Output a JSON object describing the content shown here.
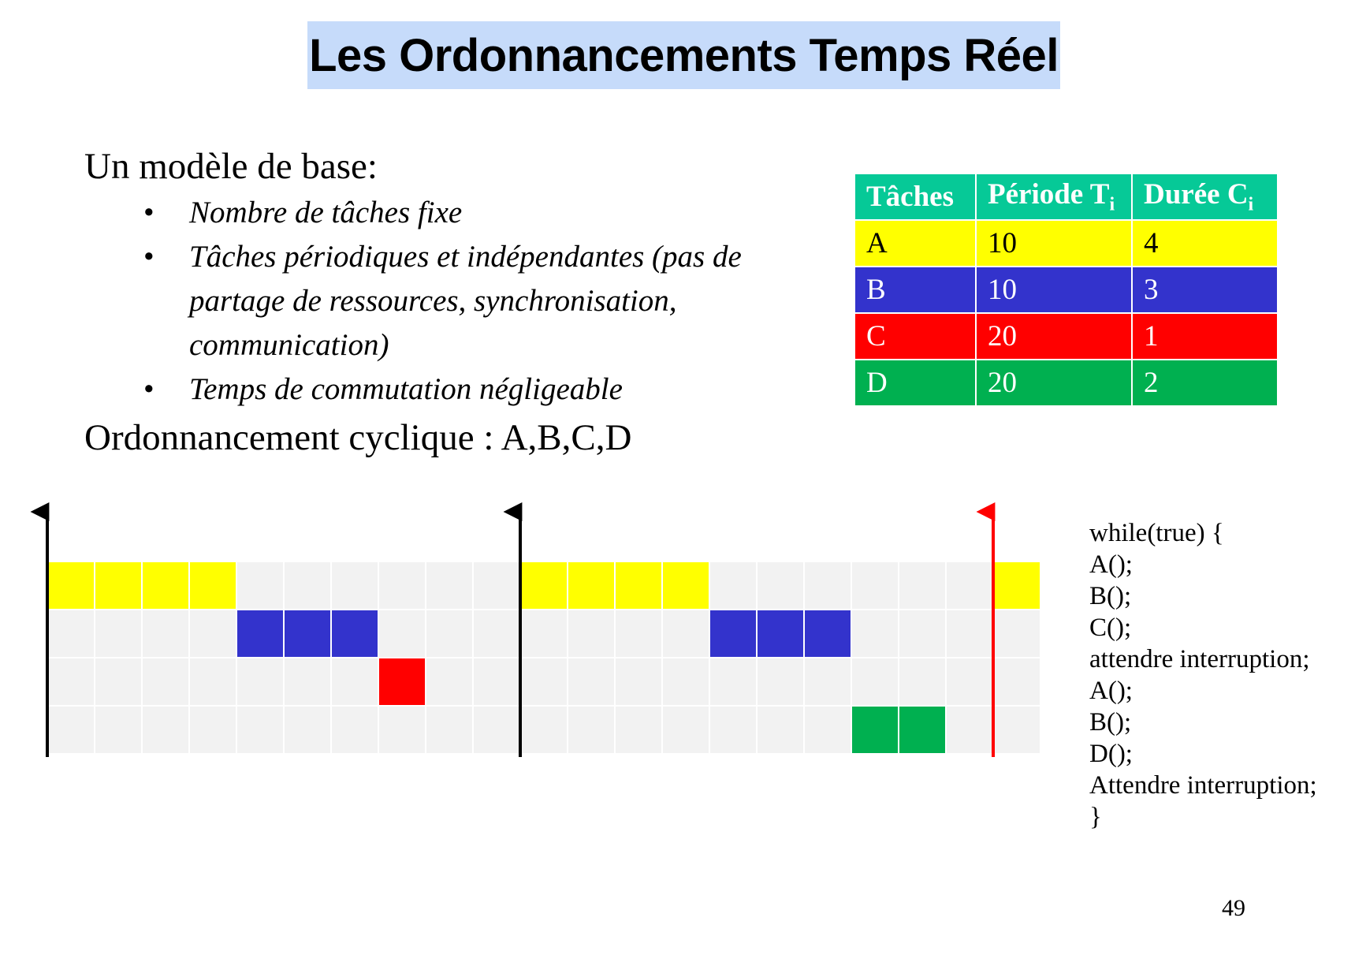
{
  "title": "Les Ordonnancements Temps Réel",
  "model_heading": "Un modèle de base:",
  "bullets": [
    "Nombre de tâches fixe",
    "Tâches périodiques et indépendantes (pas de partage de ressources, synchronisation, communication)",
    "Temps de commutation négligeable"
  ],
  "bullet_glyph": "•",
  "cyclic_heading": "Ordonnancement cyclique : A,B,C,D",
  "table": {
    "headers": {
      "task": "Tâches",
      "period": "Période T",
      "period_sub": "i",
      "duration": "Durée C",
      "duration_sub": "i"
    },
    "rows": [
      {
        "task": "A",
        "period": "10",
        "duration": "4"
      },
      {
        "task": "B",
        "period": "10",
        "duration": "3"
      },
      {
        "task": "C",
        "period": "20",
        "duration": "1"
      },
      {
        "task": "D",
        "period": "20",
        "duration": "2"
      }
    ]
  },
  "chart_data": {
    "type": "gantt",
    "time_range": [
      0,
      21
    ],
    "rows": [
      "A",
      "B",
      "C",
      "D"
    ],
    "row_colors": {
      "A": "#ffff00",
      "B": "#3333cc",
      "C": "#ff0000",
      "D": "#00b050"
    },
    "empty_color": "#f2f2f2",
    "blocks": [
      {
        "task": "A",
        "start": 0,
        "end": 4
      },
      {
        "task": "B",
        "start": 4,
        "end": 7
      },
      {
        "task": "C",
        "start": 7,
        "end": 8
      },
      {
        "task": "A",
        "start": 10,
        "end": 14
      },
      {
        "task": "B",
        "start": 14,
        "end": 17
      },
      {
        "task": "D",
        "start": 17,
        "end": 19
      },
      {
        "task": "A",
        "start": 20,
        "end": 21
      }
    ],
    "markers": [
      {
        "time": 0,
        "color": "#000000"
      },
      {
        "time": 10,
        "color": "#000000"
      },
      {
        "time": 20,
        "color": "#ff0000"
      }
    ]
  },
  "code_lines": [
    "while(true) {",
    "A();",
    "B();",
    "C();",
    "attendre interruption;",
    "A();",
    "B();",
    "D();",
    "Attendre interruption;",
    "}"
  ],
  "page_number": "49"
}
